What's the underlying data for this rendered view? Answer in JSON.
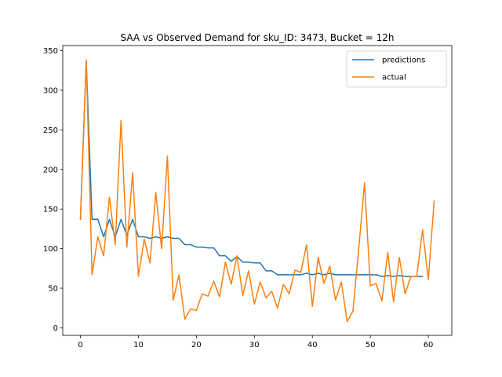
{
  "chart_data": {
    "type": "line",
    "title": "SAA vs Observed Demand for sku_ID: 3473, Bucket = 12h",
    "xlabel": "",
    "ylabel": "",
    "xlim": [
      -3.05,
      64.05
    ],
    "ylim": [
      -9.5,
      356.5
    ],
    "xticks": [
      0,
      10,
      20,
      30,
      40,
      50,
      60
    ],
    "yticks": [
      0,
      50,
      100,
      150,
      200,
      250,
      300,
      350
    ],
    "xtick_labels": [
      "0",
      "10",
      "20",
      "30",
      "40",
      "50",
      "60"
    ],
    "ytick_labels": [
      "0",
      "50",
      "100",
      "150",
      "200",
      "250",
      "300",
      "350"
    ],
    "grid": false,
    "legend_position": "top-right",
    "series": [
      {
        "name": "predictions",
        "color": "#1f77b4",
        "x": [
          0,
          1,
          2,
          3,
          4,
          5,
          6,
          7,
          8,
          9,
          10,
          11,
          12,
          13,
          14,
          15,
          16,
          17,
          18,
          19,
          20,
          21,
          22,
          23,
          24,
          25,
          26,
          27,
          28,
          29,
          30,
          31,
          32,
          33,
          34,
          35,
          36,
          37,
          38,
          39,
          40,
          41,
          42,
          43,
          44,
          45,
          46,
          47,
          48,
          49,
          50,
          51,
          52,
          53,
          54,
          55,
          56,
          57,
          58,
          59
        ],
        "values": [
          137,
          338,
          137,
          137,
          115,
          137,
          115,
          137,
          117,
          137,
          115,
          115,
          113,
          115,
          113,
          115,
          113,
          113,
          105,
          105,
          102,
          102,
          101,
          101,
          91,
          91,
          84,
          90,
          83,
          83,
          82,
          82,
          72,
          72,
          67,
          67,
          67,
          67,
          67,
          69,
          67,
          69,
          67,
          69,
          67,
          67,
          67,
          67,
          67,
          67,
          67,
          67,
          65,
          66,
          65,
          66,
          65,
          65,
          65,
          65
        ]
      },
      {
        "name": "actual",
        "color": "#ff7f0e",
        "x": [
          0,
          1,
          2,
          3,
          4,
          5,
          6,
          7,
          8,
          9,
          10,
          11,
          12,
          13,
          14,
          15,
          16,
          17,
          18,
          19,
          20,
          21,
          22,
          23,
          24,
          25,
          26,
          27,
          28,
          29,
          30,
          31,
          32,
          33,
          34,
          35,
          36,
          37,
          38,
          39,
          40,
          41,
          42,
          43,
          44,
          45,
          46,
          47,
          48,
          49,
          50,
          51,
          52,
          53,
          54,
          55,
          56,
          57,
          58,
          59,
          60,
          61
        ],
        "values": [
          137,
          338,
          67,
          115,
          91,
          165,
          105,
          262,
          102,
          196,
          65,
          112,
          82,
          171,
          100,
          217,
          35,
          67,
          11,
          24,
          22,
          43,
          40,
          59,
          39,
          83,
          55,
          91,
          41,
          72,
          30,
          58,
          38,
          46,
          25,
          55,
          43,
          73,
          70,
          105,
          27,
          89,
          56,
          78,
          35,
          58,
          8,
          21,
          100,
          183,
          53,
          56,
          34,
          95,
          33,
          89,
          43,
          65,
          65,
          124,
          61,
          160
        ]
      }
    ]
  }
}
